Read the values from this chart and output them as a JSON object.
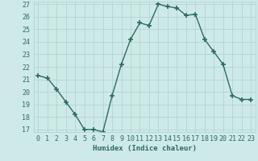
{
  "x": [
    0,
    1,
    2,
    3,
    4,
    5,
    6,
    7,
    8,
    9,
    10,
    11,
    12,
    13,
    14,
    15,
    16,
    17,
    18,
    19,
    20,
    21,
    22,
    23
  ],
  "y": [
    21.3,
    21.1,
    20.2,
    19.2,
    18.2,
    17.0,
    17.0,
    16.8,
    19.7,
    22.2,
    24.2,
    25.5,
    25.3,
    27.0,
    26.8,
    26.7,
    26.1,
    26.2,
    24.2,
    23.2,
    22.2,
    19.7,
    19.4,
    19.4
  ],
  "line_color": "#2e6b5e",
  "marker": "+",
  "markersize": 4,
  "markeredgewidth": 1.2,
  "linewidth": 1.0,
  "bg_color": "#ceeae8",
  "grid_color": "#aed0cc",
  "xlabel": "Humidex (Indice chaleur)",
  "ylim_min": 17,
  "ylim_max": 27,
  "xlim_min": -0.5,
  "xlim_max": 23.5,
  "yticks": [
    17,
    18,
    19,
    20,
    21,
    22,
    23,
    24,
    25,
    26,
    27
  ],
  "xticks": [
    0,
    1,
    2,
    3,
    4,
    5,
    6,
    7,
    8,
    9,
    10,
    11,
    12,
    13,
    14,
    15,
    16,
    17,
    18,
    19,
    20,
    21,
    22,
    23
  ],
  "xlabel_fontsize": 6.5,
  "tick_fontsize": 6.0
}
